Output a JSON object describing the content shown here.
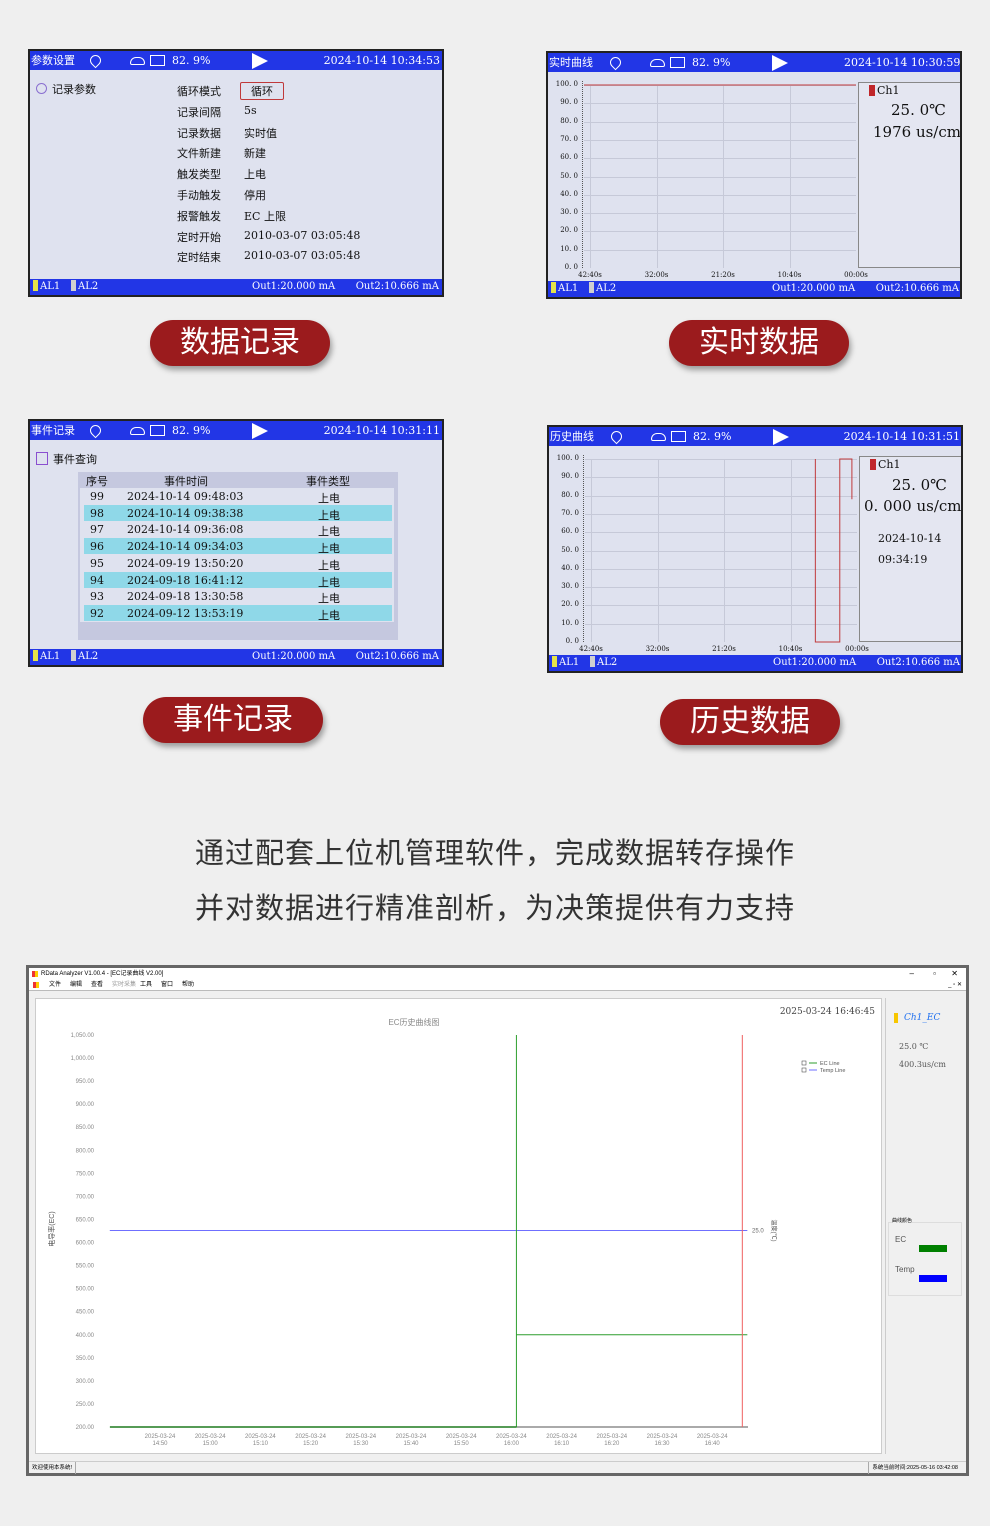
{
  "device_common": {
    "battery": "82. 9%",
    "alarm1": "AL1",
    "alarm2": "AL2",
    "out1": "Out1:20.000 mA",
    "out2": "Out2:10.666 mA",
    "colors": {
      "header": "#2236e6",
      "alarm1": "#e5e34a",
      "alarm2": "#d0d0d0",
      "trace": "#c0393b",
      "row_highlight": "#8fd8e8"
    }
  },
  "screen_record": {
    "title": "参数设置",
    "datetime": "2024-10-14 10:34:53",
    "section": "记录参数",
    "rows": [
      {
        "label": "循环模式",
        "value": "循环"
      },
      {
        "label": "记录间隔",
        "value": "5s"
      },
      {
        "label": "记录数据",
        "value": "实时值"
      },
      {
        "label": "文件新建",
        "value": "新建"
      },
      {
        "label": "触发类型",
        "value": "上电"
      },
      {
        "label": "手动触发",
        "value": "停用"
      },
      {
        "label": "报警触发",
        "value": "EC   上限"
      },
      {
        "label": "定时开始",
        "value": "2010-03-07  03:05:48"
      },
      {
        "label": "定时结束",
        "value": "2010-03-07  03:05:48"
      }
    ],
    "caption": "数据记录"
  },
  "screen_realtime": {
    "title": "实时曲线",
    "datetime": "2024-10-14 10:30:59",
    "channel": "Ch1",
    "temp": "25. 0℃",
    "ec": "1976  us/cm",
    "caption": "实时数据"
  },
  "screen_events": {
    "title": "事件记录",
    "datetime": "2024-10-14 10:31:11",
    "section": "事件查询",
    "columns": [
      "序号",
      "事件时间",
      "事件类型"
    ],
    "rows": [
      [
        "99",
        "2024-10-14  09:48:03",
        "上电"
      ],
      [
        "98",
        "2024-10-14  09:38:38",
        "上电"
      ],
      [
        "97",
        "2024-10-14  09:36:08",
        "上电"
      ],
      [
        "96",
        "2024-10-14  09:34:03",
        "上电"
      ],
      [
        "95",
        "2024-09-19  13:50:20",
        "上电"
      ],
      [
        "94",
        "2024-09-18  16:41:12",
        "上电"
      ],
      [
        "93",
        "2024-09-18  13:30:58",
        "上电"
      ],
      [
        "92",
        "2024-09-12  13:53:19",
        "上电"
      ]
    ],
    "caption": "事件记录"
  },
  "screen_history": {
    "title": "历史曲线",
    "datetime": "2024-10-14 10:31:51",
    "channel": "Ch1",
    "temp": "25. 0℃",
    "ec": "0. 000  us/cm",
    "date": "2024-10-14",
    "time": "09:34:19",
    "caption": "历史数据"
  },
  "tagline": {
    "line1": "通过配套上位机管理软件，完成数据转存操作",
    "line2": "并对数据进行精准剖析，为决策提供有力支持"
  },
  "software": {
    "window_title": "RData Analyzer V1.00.4 - [EC记录曲线 V2.00]",
    "menu": [
      "文件",
      "编辑",
      "查看",
      "实时采集",
      "工具",
      "窗口",
      "帮助"
    ],
    "timestamp": "2025-03-24 16:46:45",
    "channel": "Ch1_EC",
    "temp": "25.0 ℃",
    "ec": "400.3us/cm",
    "color_group_title": "曲线颜色",
    "color_items": [
      {
        "label": "EC",
        "color": "#008000"
      },
      {
        "label": "Temp",
        "color": "#0000ff"
      }
    ],
    "status_left": "欢迎使用本系统!",
    "status_right": "系统当前时间:2025-05-16 03:42:08"
  },
  "chart_data": [
    {
      "type": "line",
      "title": "",
      "ylabel": "",
      "xlabel": "",
      "x_ticks": [
        "42:40s",
        "32:00s",
        "21:20s",
        "10:40s",
        "00:00s"
      ],
      "y_ticks": [
        "100. 0",
        "90. 0",
        "80. 0",
        "70. 0",
        "60. 0",
        "50. 0",
        "40. 0",
        "30. 0",
        "20. 0",
        "10. 0",
        "0. 0"
      ],
      "ylim": [
        0,
        100
      ],
      "grid": true,
      "series": [
        {
          "points": [
            [
              "42:40",
              100
            ],
            [
              "00:00",
              100
            ]
          ]
        }
      ]
    },
    {
      "type": "line",
      "title": "",
      "x_ticks": [
        "42:40s",
        "32:00s",
        "21:20s",
        "10:40s",
        "00:00s"
      ],
      "y_ticks": [
        "100. 0",
        "90. 0",
        "80. 0",
        "70. 0",
        "60. 0",
        "50. 0",
        "40. 0",
        "30. 0",
        "20. 0",
        "10. 0",
        "0. 0"
      ],
      "ylim": [
        0,
        100
      ],
      "grid": true,
      "series": [
        {
          "points": [
            [
              "06:32",
              100
            ],
            [
              "06:32",
              0
            ],
            [
              "02:42",
              0
            ],
            [
              "02:42",
              100
            ],
            [
              "00:48",
              100
            ],
            [
              "00:48",
              78
            ]
          ]
        }
      ]
    },
    {
      "type": "line",
      "title": "EC历史曲线图",
      "ylabel": "电导率(EC)",
      "y2label": "温度(℃)",
      "ylim": [
        200,
        1050
      ],
      "y_ticks": [
        "1,050.00",
        "1,000.00",
        "950.00",
        "900.00",
        "850.00",
        "800.00",
        "750.00",
        "700.00",
        "650.00",
        "600.00",
        "550.00",
        "500.00",
        "450.00",
        "400.00",
        "350.00",
        "300.00",
        "250.00",
        "200.00"
      ],
      "y2_ticks": [
        "25.0"
      ],
      "x_ticks": [
        "2025-03-24 14:50",
        "2025-03-24 15:00",
        "2025-03-24 15:10",
        "2025-03-24 15:20",
        "2025-03-24 15:30",
        "2025-03-24 15:40",
        "2025-03-24 15:50",
        "2025-03-24 16:00",
        "2025-03-24 16:10",
        "2025-03-24 16:20",
        "2025-03-24 16:30",
        "2025-03-24 16:40"
      ],
      "legend": {
        "placement": "top-right",
        "entries": [
          "EC Line",
          "Temp Line"
        ]
      },
      "cursor_time": "16:46",
      "series": [
        {
          "name": "EC Line",
          "color": "#2e9e2e",
          "points": [
            [
              "14:40",
              200
            ],
            [
              "16:01",
              200
            ],
            [
              "16:01",
              1050
            ],
            [
              "16:01",
              400
            ],
            [
              "16:47",
              400
            ]
          ]
        },
        {
          "name": "Temp Line",
          "color": "#6f6fff",
          "temp": 25.0,
          "points": [
            [
              "14:40",
              25.0
            ],
            [
              "16:47",
              25.0
            ]
          ]
        }
      ]
    }
  ]
}
